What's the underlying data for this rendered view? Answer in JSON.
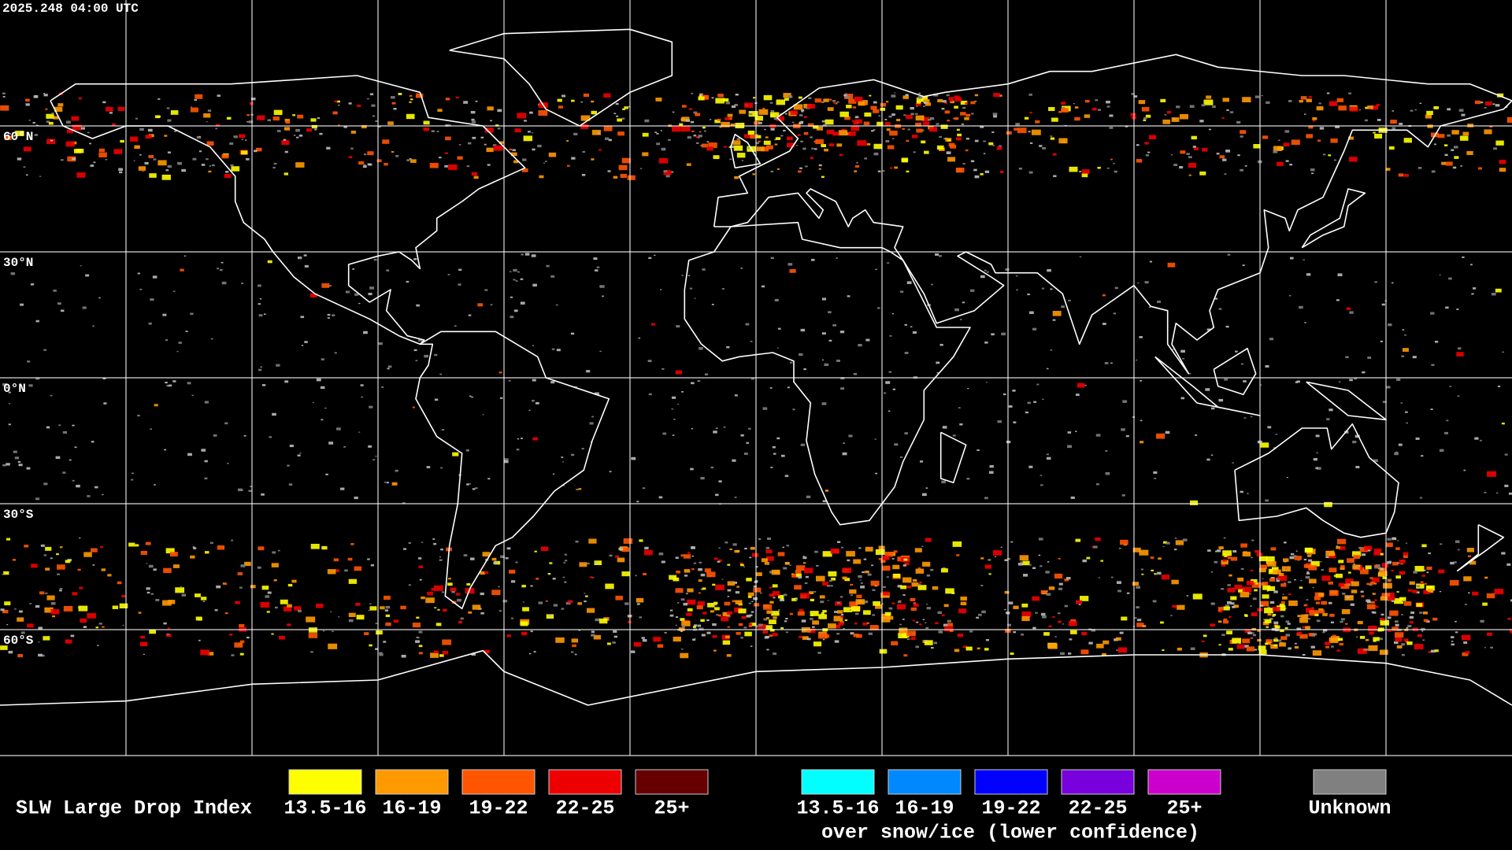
{
  "timestamp": "2025.248 04:00 UTC",
  "latitude_labels": [
    "60°N",
    "30°N",
    "0°N",
    "30°S",
    "60°S"
  ],
  "legend": {
    "title": "SLW Large Drop Index",
    "items": [
      {
        "label": "13.5-16",
        "color": "#ffff00"
      },
      {
        "label": "16-19",
        "color": "#ff9900"
      },
      {
        "label": "19-22",
        "color": "#ff5500"
      },
      {
        "label": "22-25",
        "color": "#ee0000"
      },
      {
        "label": "25+",
        "color": "#660000"
      }
    ],
    "snow_items": [
      {
        "label": "13.5-16",
        "color": "#00ffff"
      },
      {
        "label": "16-19",
        "color": "#0088ff"
      },
      {
        "label": "19-22",
        "color": "#0000ff"
      },
      {
        "label": "22-25",
        "color": "#7700dd"
      },
      {
        "label": "25+",
        "color": "#cc00cc"
      }
    ],
    "snow_note": "over snow/ice (lower confidence)",
    "unknown": {
      "label": "Unknown",
      "color": "#808080"
    }
  }
}
